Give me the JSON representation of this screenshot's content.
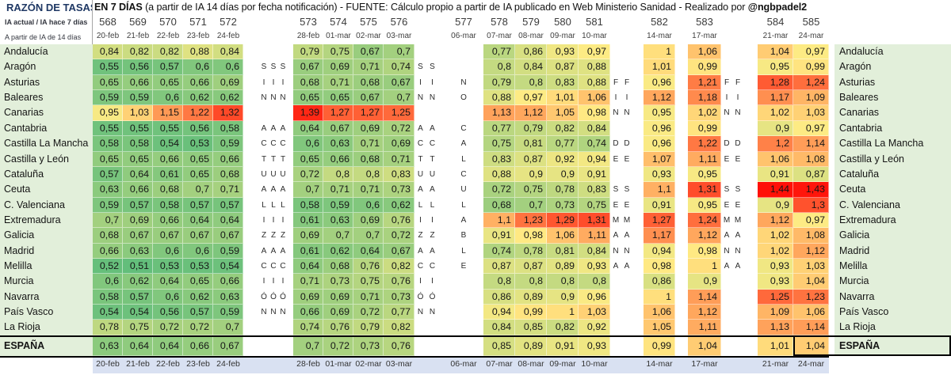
{
  "title": {
    "left": "RAZÓN DE TASAS",
    "bold": "EN 7 DÍAS",
    "middle": " (a partir de IA 14 días por fecha notificación) - FUENTE: Cálculo propio a partir de IA publicado en Web Ministerio Sanidad - Realizado por ",
    "author": "@ngbpadel2"
  },
  "header": {
    "subtitle1": "IA actual / IA hace 7 días",
    "subtitle2": "A partir de IA de 14 días",
    "day_numbers": [
      "568",
      "569",
      "570",
      "571",
      "572",
      "573",
      "574",
      "575",
      "576",
      "577",
      "578",
      "579",
      "580",
      "581",
      "582",
      "583",
      "584",
      "585"
    ],
    "dates": [
      "20-feb",
      "21-feb",
      "22-feb",
      "23-feb",
      "24-feb",
      "28-feb",
      "01-mar",
      "02-mar",
      "03-mar",
      "06-mar",
      "07-mar",
      "08-mar",
      "09-mar",
      "10-mar",
      "14-mar",
      "17-mar",
      "21-mar",
      "24-mar"
    ]
  },
  "colors": {
    "scale_min_green": "#63BE7B",
    "scale_mid_yellow": "#FFEB84",
    "scale_max_red": "#FF1008",
    "name_column_bg": "#E2EFDA",
    "footer_bg": "#D9E1F2",
    "title_color": "#1F3864"
  },
  "espana": {
    "label": "ESPAÑA",
    "values": [
      "0,63",
      "0,64",
      "0,64",
      "0,66",
      "0,67",
      "0,7",
      "0,72",
      "0,73",
      "0,76",
      "",
      "0,85",
      "0,89",
      "0,91",
      "0,93",
      "0,99",
      "1,04",
      "1,01",
      "1,04"
    ]
  },
  "regions": [
    {
      "name": "Andalucía",
      "values": [
        "0,84",
        "0,82",
        "0,82",
        "0,88",
        "0,84",
        "0,79",
        "0,75",
        "0,67",
        "0,7",
        "",
        "0,77",
        "0,86",
        "0,93",
        "0,97",
        "1",
        "1,06",
        "1,04",
        "0,97"
      ],
      "letters": [
        "",
        "",
        "",
        "",
        ""
      ]
    },
    {
      "name": "Aragón",
      "values": [
        "0,55",
        "0,56",
        "0,57",
        "0,6",
        "0,6",
        "0,67",
        "0,69",
        "0,71",
        "0,74",
        "",
        "0,8",
        "0,84",
        "0,87",
        "0,88",
        "1,01",
        "0,99",
        "0,95",
        "0,99"
      ],
      "letters": [
        "S",
        "S",
        "",
        "",
        ""
      ]
    },
    {
      "name": "Asturias",
      "values": [
        "0,65",
        "0,66",
        "0,65",
        "0,66",
        "0,69",
        "0,68",
        "0,71",
        "0,68",
        "0,67",
        "",
        "0,79",
        "0,8",
        "0,83",
        "0,88",
        "0,96",
        "1,21",
        "1,28",
        "1,24"
      ],
      "letters": [
        "I",
        "I",
        "N",
        "F",
        "F"
      ]
    },
    {
      "name": "Baleares",
      "values": [
        "0,59",
        "0,59",
        "0,6",
        "0,62",
        "0,62",
        "0,65",
        "0,65",
        "0,67",
        "0,7",
        "",
        "0,88",
        "0,97",
        "1,01",
        "1,06",
        "1,12",
        "1,18",
        "1,17",
        "1,09"
      ],
      "letters": [
        "N",
        "N",
        "O",
        "I",
        "I"
      ]
    },
    {
      "name": "Canarias",
      "values": [
        "0,95",
        "1,03",
        "1,15",
        "1,22",
        "1,32",
        "1,39",
        "1,27",
        "1,27",
        "1,25",
        "",
        "1,13",
        "1,12",
        "1,05",
        "0,98",
        "0,95",
        "1,02",
        "1,02",
        "1,03"
      ],
      "letters": [
        "",
        "",
        "",
        "N",
        "N"
      ]
    },
    {
      "name": "Cantabria",
      "values": [
        "0,55",
        "0,55",
        "0,55",
        "0,56",
        "0,58",
        "0,64",
        "0,67",
        "0,69",
        "0,72",
        "",
        "0,77",
        "0,79",
        "0,82",
        "0,84",
        "0,96",
        "0,99",
        "0,9",
        "0,97"
      ],
      "letters": [
        "A",
        "A",
        "C",
        "",
        ""
      ]
    },
    {
      "name": "Castilla La Mancha",
      "values": [
        "0,58",
        "0,58",
        "0,54",
        "0,53",
        "0,59",
        "0,6",
        "0,63",
        "0,71",
        "0,69",
        "",
        "0,75",
        "0,81",
        "0,77",
        "0,74",
        "0,96",
        "1,22",
        "1,2",
        "1,14"
      ],
      "letters": [
        "C",
        "C",
        "A",
        "D",
        "D"
      ]
    },
    {
      "name": "Castilla y León",
      "values": [
        "0,65",
        "0,65",
        "0,66",
        "0,65",
        "0,66",
        "0,65",
        "0,66",
        "0,68",
        "0,71",
        "",
        "0,83",
        "0,87",
        "0,92",
        "0,94",
        "1,07",
        "1,11",
        "1,06",
        "1,08"
      ],
      "letters": [
        "T",
        "T",
        "L",
        "E",
        "E"
      ]
    },
    {
      "name": "Cataluña",
      "values": [
        "0,57",
        "0,64",
        "0,61",
        "0,65",
        "0,68",
        "0,72",
        "0,8",
        "0,8",
        "0,83",
        "",
        "0,88",
        "0,9",
        "0,9",
        "0,91",
        "0,93",
        "0,95",
        "0,91",
        "0,87"
      ],
      "letters": [
        "U",
        "U",
        "C",
        "",
        ""
      ]
    },
    {
      "name": "Ceuta",
      "values": [
        "0,63",
        "0,66",
        "0,68",
        "0,7",
        "0,71",
        "0,7",
        "0,71",
        "0,71",
        "0,73",
        "",
        "0,72",
        "0,75",
        "0,78",
        "0,83",
        "1,1",
        "1,31",
        "1,44",
        "1,43"
      ],
      "letters": [
        "A",
        "A",
        "U",
        "S",
        "S"
      ]
    },
    {
      "name": "C. Valenciana",
      "values": [
        "0,59",
        "0,57",
        "0,58",
        "0,57",
        "0,57",
        "0,58",
        "0,59",
        "0,6",
        "0,62",
        "",
        "0,68",
        "0,7",
        "0,73",
        "0,75",
        "0,91",
        "0,95",
        "0,9",
        "1,3"
      ],
      "letters": [
        "L",
        "L",
        "L",
        "E",
        "E"
      ]
    },
    {
      "name": "Extremadura",
      "values": [
        "0,7",
        "0,69",
        "0,66",
        "0,64",
        "0,64",
        "0,61",
        "0,63",
        "0,69",
        "0,76",
        "",
        "1,1",
        "1,23",
        "1,29",
        "1,31",
        "1,27",
        "1,24",
        "1,12",
        "0,97"
      ],
      "letters": [
        "I",
        "I",
        "A",
        "M",
        "M"
      ]
    },
    {
      "name": "Galicia",
      "values": [
        "0,68",
        "0,67",
        "0,67",
        "0,67",
        "0,67",
        "0,69",
        "0,7",
        "0,7",
        "0,72",
        "",
        "0,91",
        "0,98",
        "1,06",
        "1,11",
        "1,17",
        "1,12",
        "1,02",
        "1,08"
      ],
      "letters": [
        "Z",
        "Z",
        "B",
        "A",
        "A"
      ]
    },
    {
      "name": "Madrid",
      "values": [
        "0,66",
        "0,63",
        "0,6",
        "0,6",
        "0,59",
        "0,61",
        "0,62",
        "0,64",
        "0,67",
        "",
        "0,74",
        "0,78",
        "0,81",
        "0,84",
        "0,94",
        "0,98",
        "1,02",
        "1,12"
      ],
      "letters": [
        "A",
        "A",
        "L",
        "N",
        "N"
      ]
    },
    {
      "name": "Melilla",
      "values": [
        "0,52",
        "0,51",
        "0,53",
        "0,53",
        "0,54",
        "0,64",
        "0,68",
        "0,76",
        "0,82",
        "",
        "0,87",
        "0,87",
        "0,89",
        "0,93",
        "0,98",
        "1",
        "0,93",
        "1,03"
      ],
      "letters": [
        "C",
        "C",
        "E",
        "A",
        "A"
      ]
    },
    {
      "name": "Murcia",
      "values": [
        "0,6",
        "0,62",
        "0,64",
        "0,65",
        "0,66",
        "0,71",
        "0,73",
        "0,75",
        "0,76",
        "",
        "0,8",
        "0,8",
        "0,8",
        "0,8",
        "0,86",
        "0,9",
        "0,93",
        "1,04"
      ],
      "letters": [
        "I",
        "I",
        "",
        "",
        ""
      ]
    },
    {
      "name": "Navarra",
      "values": [
        "0,58",
        "0,57",
        "0,6",
        "0,62",
        "0,63",
        "0,69",
        "0,69",
        "0,71",
        "0,73",
        "",
        "0,86",
        "0,89",
        "0,9",
        "0,96",
        "1",
        "1,14",
        "1,25",
        "1,23"
      ],
      "letters": [
        "Ó",
        "Ó",
        "",
        "",
        ""
      ]
    },
    {
      "name": "País Vasco",
      "values": [
        "0,54",
        "0,54",
        "0,56",
        "0,57",
        "0,59",
        "0,66",
        "0,69",
        "0,72",
        "0,77",
        "",
        "0,94",
        "0,99",
        "1",
        "1,03",
        "1,06",
        "1,12",
        "1,09",
        "1,06"
      ],
      "letters": [
        "N",
        "N",
        "",
        "",
        ""
      ]
    },
    {
      "name": "La Rioja",
      "values": [
        "0,78",
        "0,75",
        "0,72",
        "0,72",
        "0,7",
        "0,74",
        "0,76",
        "0,79",
        "0,82",
        "",
        "0,84",
        "0,85",
        "0,82",
        "0,92",
        "1,05",
        "1,11",
        "1,13",
        "1,14"
      ],
      "letters": [
        "",
        "",
        "",
        "",
        ""
      ]
    }
  ]
}
